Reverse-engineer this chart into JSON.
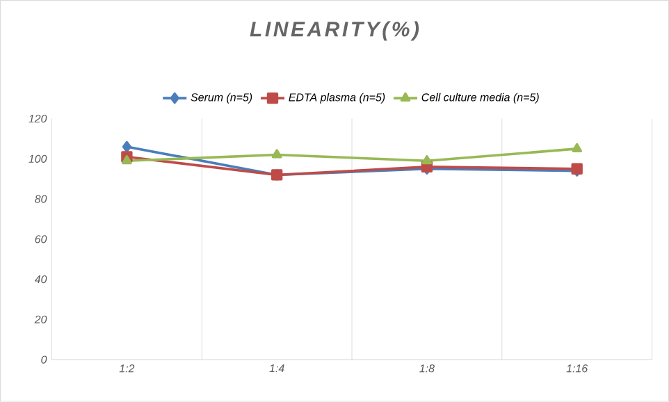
{
  "chart_data": {
    "type": "line",
    "title": "LINEARITY(%)",
    "categories": [
      "1:2",
      "1:4",
      "1:8",
      "1:16"
    ],
    "series": [
      {
        "name": "Serum (n=5)",
        "color": "#4a7ebb",
        "marker": "diamond",
        "values": [
          106,
          92,
          95,
          94
        ]
      },
      {
        "name": "EDTA plasma (n=5)",
        "color": "#be4b48",
        "marker": "square",
        "values": [
          101,
          92,
          96,
          95
        ]
      },
      {
        "name": "Cell culture media (n=5)",
        "color": "#98b954",
        "marker": "triangle",
        "values": [
          99,
          102,
          99,
          105
        ]
      }
    ],
    "ylim": [
      0,
      120
    ],
    "yticks": [
      0,
      20,
      40,
      60,
      80,
      100,
      120
    ],
    "grid": "x",
    "legend": "top",
    "line_style": "solid"
  }
}
